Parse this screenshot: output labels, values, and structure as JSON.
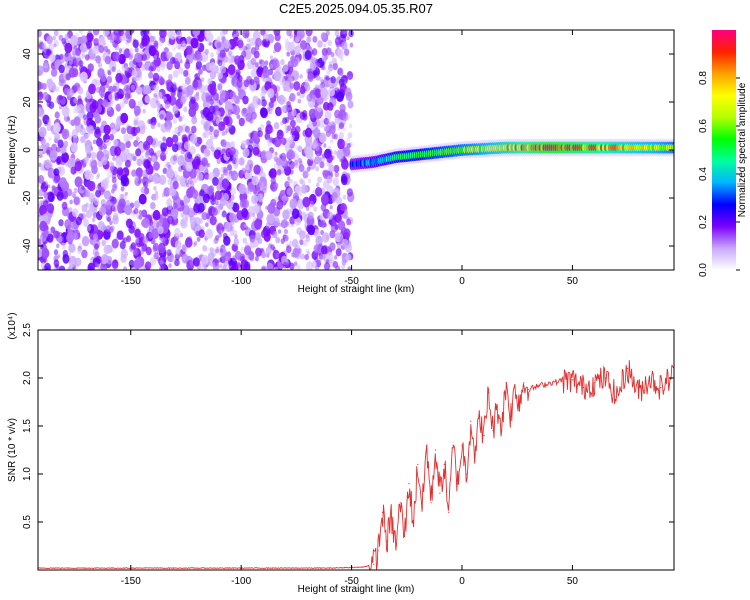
{
  "title": "C2E5.2025.094.05.35.R07",
  "chart_data": [
    {
      "type": "heatmap",
      "xlabel": "Height of straight line (km)",
      "ylabel": "Frequency (Hz)",
      "xlim": [
        -192,
        96
      ],
      "ylim": [
        -50,
        50
      ],
      "xticks": [
        -150,
        -100,
        -50,
        0,
        50
      ],
      "yticks": [
        -40,
        -20,
        0,
        20,
        40
      ],
      "colorbar": {
        "label": "Normalized spectral amplitude",
        "range": [
          0,
          1
        ],
        "ticks": [
          "0.0",
          "0.2",
          "0.4",
          "0.6",
          "0.8"
        ],
        "colormap": [
          "#ffffff",
          "#c8a6ff",
          "#7a00ff",
          "#0000ff",
          "#00b4ff",
          "#00ff9c",
          "#00ff00",
          "#b4ff00",
          "#ffff00",
          "#ffa000",
          "#ff2000",
          "#ff0080"
        ]
      },
      "features": [
        {
          "region": "noise",
          "x_range": [
            -192,
            -50
          ],
          "frequency_range": [
            -50,
            50
          ],
          "amplitude_range": [
            0.05,
            0.15
          ]
        },
        {
          "region": "signal-track",
          "x": [
            -50,
            -40,
            -30,
            -20,
            -10,
            0,
            10,
            20,
            40,
            60,
            96
          ],
          "frequency": [
            -6,
            -5,
            -3,
            -2,
            -1,
            0,
            0.5,
            1,
            1,
            1,
            1
          ],
          "amplitude": [
            0.3,
            0.35,
            0.45,
            0.5,
            0.55,
            0.6,
            0.65,
            0.75,
            0.95,
            0.85,
            0.6
          ]
        }
      ]
    },
    {
      "type": "line",
      "xlabel": "Height of straight line (km)",
      "ylabel": "SNR (10 * v/v)",
      "yscale_note": "(x10⁴)",
      "xlim": [
        -192,
        96
      ],
      "ylim": [
        0,
        2.5
      ],
      "xticks": [
        -150,
        -100,
        -50,
        0,
        50
      ],
      "yticks": [
        0.5,
        1.0,
        1.5,
        2.0,
        2.5
      ],
      "ytick_labels": [
        "0.5",
        "1.0",
        "1.5",
        "2.0",
        "2.5"
      ],
      "color": "#e03030",
      "series": [
        {
          "x": [
            -192,
            -150,
            -100,
            -60,
            -45,
            -40,
            -38,
            -36,
            -34,
            -32,
            -30,
            -28,
            -26,
            -24,
            -22,
            -20,
            -18,
            -16,
            -14,
            -12,
            -10,
            -8,
            -6,
            -4,
            -2,
            0,
            2,
            4,
            6,
            8,
            10,
            12,
            14,
            16,
            18,
            20,
            22,
            24,
            26,
            28,
            30,
            35,
            40,
            45,
            50,
            55,
            60,
            65,
            70,
            75,
            80,
            85,
            90,
            96
          ],
          "y": [
            0.02,
            0.02,
            0.02,
            0.02,
            0.03,
            0.06,
            0.2,
            0.6,
            0.3,
            0.55,
            0.25,
            0.7,
            0.35,
            0.9,
            0.5,
            1.1,
            0.65,
            1.3,
            0.7,
            1.25,
            0.8,
            1.1,
            0.6,
            1.3,
            0.9,
            1.3,
            1.0,
            1.55,
            1.2,
            1.6,
            1.4,
            1.85,
            1.45,
            1.7,
            1.5,
            1.95,
            1.6,
            1.9,
            1.75,
            1.95,
            1.88,
            1.92,
            1.95,
            1.97,
            1.98,
            1.9,
            1.95,
            2.0,
            1.8,
            2.1,
            1.85,
            2.0,
            1.9,
            2.05
          ]
        }
      ]
    }
  ]
}
